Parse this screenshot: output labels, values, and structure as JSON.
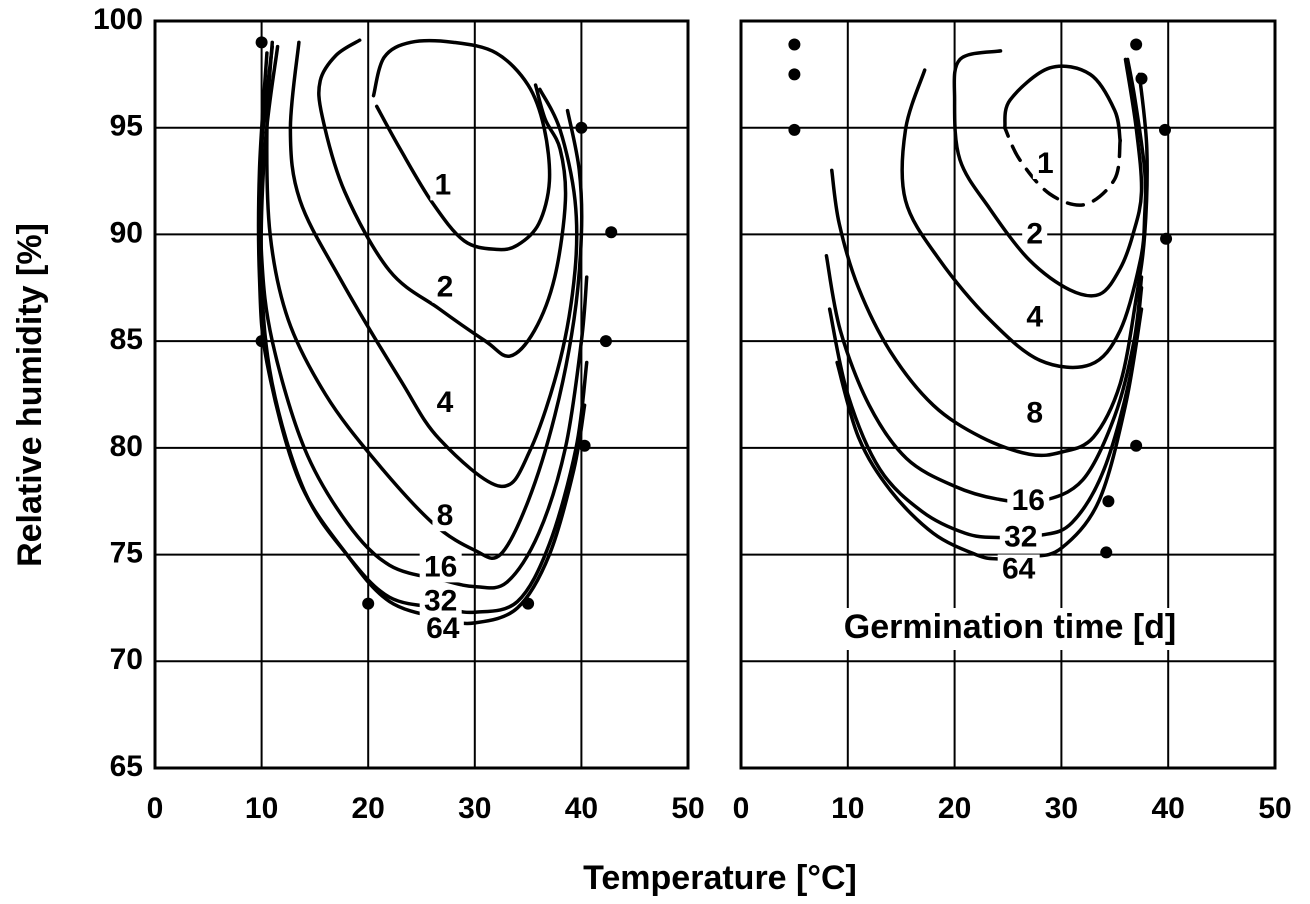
{
  "chart_data": [
    {
      "type": "contour",
      "xlabel": "Temperature [°C]",
      "ylabel": "Relative humidity [%]",
      "xlim": [
        0,
        50
      ],
      "xticks": [
        0,
        10,
        20,
        30,
        40,
        50
      ],
      "ylim": [
        65,
        100
      ],
      "yticks": [
        65,
        70,
        75,
        80,
        85,
        90,
        95,
        100
      ],
      "grid": true,
      "color": "#000000",
      "series": [
        {
          "name": "1",
          "x": [
            20.5,
            21.5,
            24,
            28,
            32,
            35,
            36.5,
            37,
            36,
            34,
            32,
            29,
            26,
            23,
            20.8
          ],
          "values": [
            96.5,
            98.3,
            99,
            99,
            98.5,
            97,
            95,
            92.5,
            90.5,
            89.5,
            89.3,
            89.7,
            91.5,
            94,
            96
          ]
        },
        {
          "name": "2",
          "x": [
            19.2,
            17,
            15.5,
            15.7,
            17.8,
            22,
            26.7,
            31,
            33.3,
            35.6,
            37.5,
            38.5,
            38,
            36.6,
            35.7
          ],
          "values": [
            99.1,
            98.4,
            97.2,
            95.5,
            92,
            88.3,
            86.5,
            85,
            84.3,
            85.5,
            88,
            91.6,
            94,
            95.4,
            97
          ]
        },
        {
          "name": "4",
          "x": [
            13.5,
            12.7,
            13.6,
            17.4,
            23,
            26.7,
            32.4,
            35.2,
            38,
            39.4,
            39.4,
            38,
            36.1
          ],
          "values": [
            99,
            94.9,
            91.6,
            87.9,
            83.2,
            80.4,
            78.2,
            79.9,
            84.1,
            88.3,
            91.6,
            94.9,
            96.8
          ]
        },
        {
          "name": "8",
          "x": [
            11,
            10.5,
            10.8,
            12.5,
            16,
            20.5,
            26,
            30,
            32.4,
            35,
            37.5,
            39.3,
            40,
            39.8,
            38.7
          ],
          "values": [
            99,
            95,
            90,
            86,
            82.5,
            79.5,
            76.5,
            75.2,
            75,
            77.5,
            81.5,
            86,
            90,
            93,
            95.8
          ]
        },
        {
          "name": "16",
          "x": [
            11,
            10,
            10,
            11,
            14,
            18,
            22,
            27,
            30,
            33,
            36,
            38.5,
            40,
            40.5
          ],
          "values": [
            98.8,
            94,
            89,
            85,
            80,
            76.5,
            74.5,
            73.8,
            73.5,
            73.7,
            76,
            80,
            85,
            88
          ]
        },
        {
          "name": "32",
          "x": [
            11.5,
            10.3,
            10,
            11,
            14,
            18,
            22,
            27,
            30,
            34,
            37,
            39.5,
            40.5
          ],
          "values": [
            98.8,
            94,
            88,
            83,
            78,
            75,
            73,
            72.5,
            72.3,
            72.8,
            75.5,
            80,
            84
          ]
        },
        {
          "name": "64",
          "x": [
            10.5,
            9.8,
            9.8,
            10.5,
            13.5,
            18,
            22,
            27,
            30,
            34,
            37,
            39.3,
            40.3
          ],
          "values": [
            98.5,
            93,
            88,
            84,
            78.5,
            75,
            72.8,
            72,
            71.8,
            72.5,
            75,
            79,
            82
          ]
        }
      ],
      "points": {
        "x": [
          10,
          10,
          20,
          35,
          40,
          42.8,
          42.3,
          40.3
        ],
        "values": [
          99,
          85,
          72.7,
          72.7,
          95,
          90.1,
          85,
          80.1
        ]
      }
    },
    {
      "type": "contour",
      "annotation": "Germination time [d]",
      "xlim": [
        0,
        50
      ],
      "xticks": [
        0,
        10,
        20,
        30,
        40,
        50
      ],
      "ylim": [
        65,
        100
      ],
      "yticks": [
        65,
        70,
        75,
        80,
        85,
        90,
        95,
        100
      ],
      "grid": true,
      "color": "#000000",
      "series": [
        {
          "name": "1",
          "x": [
            24.7,
            25.2,
            28.9,
            32.7,
            35,
            35.5
          ],
          "values": [
            95,
            96.3,
            97.8,
            97.5,
            95.8,
            94.4
          ],
          "dashed": {
            "x": [
              35.5,
              35,
              32.2,
              28.9,
              26.1,
              24.7
            ],
            "values": [
              94.4,
              92.6,
              91.4,
              91.9,
              93.5,
              95
            ]
          }
        },
        {
          "name": "2",
          "x": [
            24.3,
            20.5,
            20,
            20.5,
            23.3,
            27,
            30.8,
            33.6,
            35.5,
            36.7,
            37.5,
            37,
            36
          ],
          "values": [
            98.6,
            98.2,
            96.3,
            93.5,
            91.2,
            88.8,
            87.4,
            87.2,
            88.4,
            90,
            92,
            95,
            98.2
          ]
        },
        {
          "name": "4",
          "x": [
            17.2,
            15.4,
            15.4,
            18.6,
            23.3,
            28,
            32.7,
            35.5,
            37.4,
            37.8,
            37.8,
            36.9,
            36.2
          ],
          "values": [
            97.7,
            94.9,
            91.6,
            88.8,
            86,
            84.1,
            83.9,
            85.5,
            88.8,
            90.9,
            93,
            96.3,
            98.2
          ]
        },
        {
          "name": "8",
          "x": [
            8.5,
            9.2,
            11,
            14,
            18,
            22.5,
            27,
            30,
            33,
            35.5,
            37,
            37.8,
            38,
            37.3
          ],
          "values": [
            93,
            90.5,
            87.5,
            84.5,
            82,
            80.5,
            79.7,
            79.8,
            80.5,
            83,
            87,
            90,
            94,
            97.5
          ]
        },
        {
          "name": "16",
          "x": [
            8,
            9.3,
            12,
            15.5,
            20,
            24,
            28,
            32,
            35,
            36.8,
            37.5
          ],
          "values": [
            89,
            85.5,
            82,
            79.5,
            78.2,
            77.6,
            77.5,
            78.5,
            81.5,
            85,
            88
          ]
        },
        {
          "name": "32",
          "x": [
            8.3,
            10,
            13,
            17,
            21,
            24,
            28,
            31,
            34,
            36.5,
            37.5
          ],
          "values": [
            86.5,
            82.5,
            79,
            77,
            76,
            75.8,
            75.9,
            76.5,
            79,
            83.5,
            87.5
          ]
        },
        {
          "name": "64",
          "x": [
            9,
            11,
            14,
            18,
            22,
            24,
            27,
            30,
            33.5,
            36,
            37.5
          ],
          "values": [
            84,
            80.5,
            78,
            76,
            75,
            74.8,
            74.9,
            75.3,
            77.5,
            82,
            86.5
          ]
        }
      ],
      "points": {
        "x": [
          5,
          5,
          5,
          37,
          37.5,
          39.7,
          39.8,
          37,
          34.4,
          34.2
        ],
        "values": [
          98.9,
          97.5,
          94.9,
          98.9,
          97.3,
          94.9,
          89.8,
          80.1,
          77.5,
          75.1
        ]
      }
    }
  ]
}
